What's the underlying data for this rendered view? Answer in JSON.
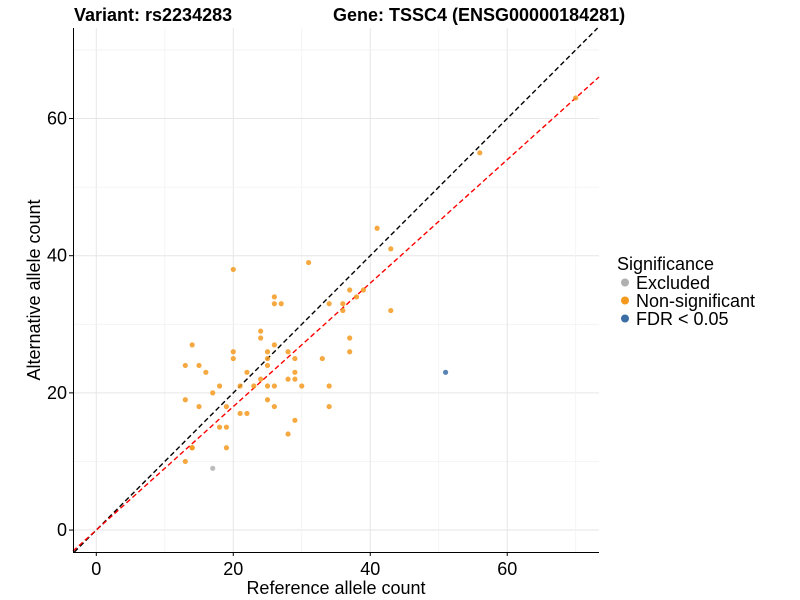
{
  "chart_data": {
    "type": "scatter",
    "title_variant": "Variant: rs2234283",
    "title_gene": "Gene: TSSC4 (ENSG00000184281)",
    "xlabel": "Reference allele count",
    "ylabel": "Alternative allele count",
    "xlim": [
      -3.4,
      73.4
    ],
    "ylim": [
      -3.2,
      73.2
    ],
    "xticks": [
      0,
      20,
      40,
      60
    ],
    "yticks": [
      0,
      20,
      40,
      60
    ],
    "grid": true,
    "legend": {
      "title": "Significance",
      "position": "right",
      "entries": [
        {
          "name": "Excluded",
          "color": "#b0b0b0"
        },
        {
          "name": "Non-significant",
          "color": "#f39a1e"
        },
        {
          "name": "FDR < 0.05",
          "color": "#3a6ea5"
        }
      ]
    },
    "reference_lines": [
      {
        "name": "identity",
        "slope": 1.0,
        "intercept": 0,
        "color": "#000000",
        "style": "dashed"
      },
      {
        "name": "fit",
        "slope": 0.9,
        "intercept": 0,
        "color": "#ff0000",
        "style": "dashed"
      }
    ],
    "series": [
      {
        "name": "Excluded",
        "color": "#b0b0b0",
        "points": [
          [
            17,
            9
          ]
        ]
      },
      {
        "name": "Non-significant",
        "color": "#f39a1e",
        "points": [
          [
            13,
            24
          ],
          [
            13,
            19
          ],
          [
            13,
            10
          ],
          [
            14,
            27
          ],
          [
            14,
            12
          ],
          [
            14,
            12
          ],
          [
            15,
            24
          ],
          [
            15,
            18
          ],
          [
            16,
            23
          ],
          [
            17,
            20
          ],
          [
            18,
            21
          ],
          [
            18,
            15
          ],
          [
            19,
            15
          ],
          [
            19,
            12
          ],
          [
            19,
            18
          ],
          [
            20,
            38
          ],
          [
            20,
            26
          ],
          [
            20,
            25
          ],
          [
            21,
            21
          ],
          [
            21,
            17
          ],
          [
            22,
            23
          ],
          [
            22,
            17
          ],
          [
            23,
            21
          ],
          [
            24,
            29
          ],
          [
            24,
            28
          ],
          [
            24,
            22
          ],
          [
            25,
            26
          ],
          [
            25,
            25
          ],
          [
            25,
            24
          ],
          [
            25,
            21
          ],
          [
            25,
            19
          ],
          [
            26,
            34
          ],
          [
            26,
            33
          ],
          [
            26,
            27
          ],
          [
            26,
            21
          ],
          [
            26,
            18
          ],
          [
            27,
            33
          ],
          [
            28,
            26
          ],
          [
            28,
            22
          ],
          [
            28,
            14
          ],
          [
            29,
            25
          ],
          [
            29,
            23
          ],
          [
            29,
            22
          ],
          [
            29,
            16
          ],
          [
            30,
            21
          ],
          [
            31,
            39
          ],
          [
            33,
            25
          ],
          [
            34,
            33
          ],
          [
            34,
            21
          ],
          [
            34,
            18
          ],
          [
            36,
            33
          ],
          [
            36,
            32
          ],
          [
            37,
            35
          ],
          [
            37,
            28
          ],
          [
            37,
            26
          ],
          [
            38,
            34
          ],
          [
            39,
            35
          ],
          [
            41,
            44
          ],
          [
            43,
            41
          ],
          [
            43,
            32
          ],
          [
            56,
            55
          ],
          [
            70,
            63
          ]
        ]
      },
      {
        "name": "FDR < 0.05",
        "color": "#3a6ea5",
        "points": [
          [
            51,
            23
          ]
        ]
      }
    ]
  }
}
